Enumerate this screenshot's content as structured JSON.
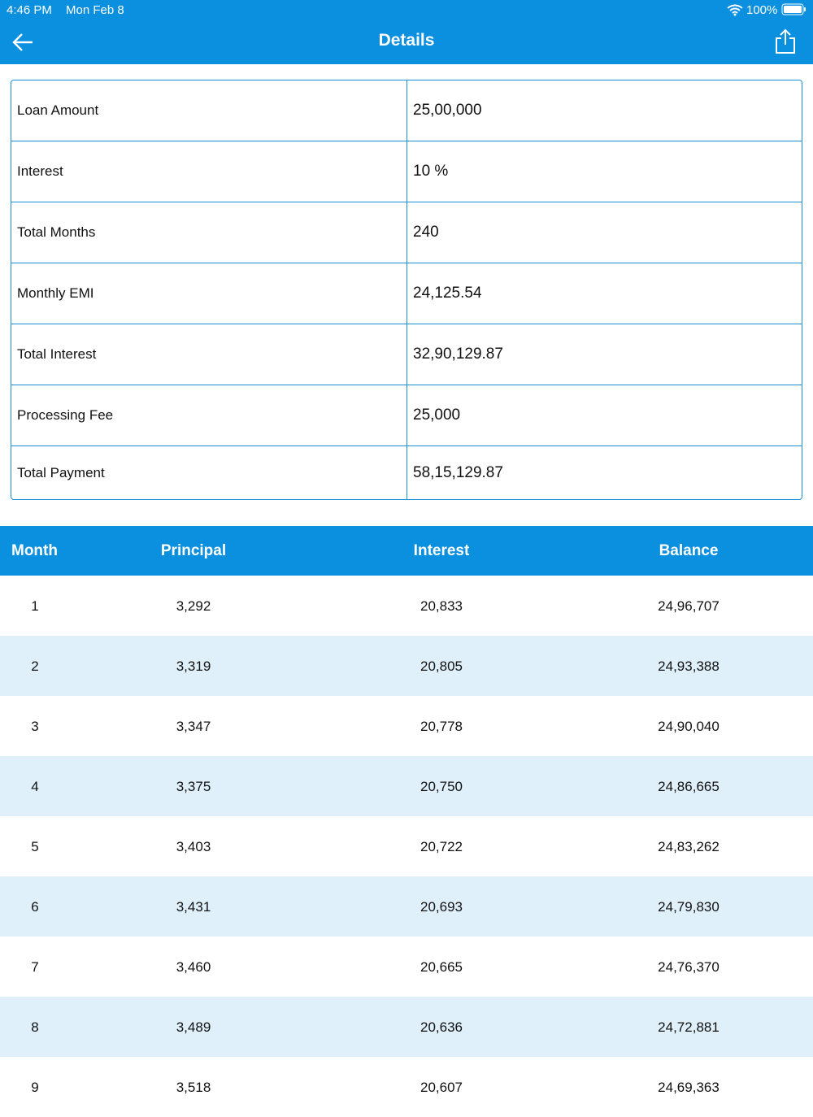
{
  "status_bar": {
    "time": "4:46 PM",
    "date": "Mon Feb 8",
    "battery": "100%"
  },
  "header": {
    "title": "Details"
  },
  "summary": {
    "rows": [
      [
        "Loan Amount",
        "25,00,000"
      ],
      [
        "Interest",
        "10 %"
      ],
      [
        "Total Months",
        "240"
      ],
      [
        "Monthly EMI",
        "24,125.54"
      ],
      [
        "Total Interest",
        "32,90,129.87"
      ],
      [
        "Processing Fee",
        "25,000"
      ],
      [
        "Total Payment",
        "58,15,129.87"
      ]
    ]
  },
  "schedule": {
    "columns": [
      "Month",
      "Principal",
      "Interest",
      "Balance"
    ],
    "rows": [
      [
        "1",
        "3,292",
        "20,833",
        "24,96,707"
      ],
      [
        "2",
        "3,319",
        "20,805",
        "24,93,388"
      ],
      [
        "3",
        "3,347",
        "20,778",
        "24,90,040"
      ],
      [
        "4",
        "3,375",
        "20,750",
        "24,86,665"
      ],
      [
        "5",
        "3,403",
        "20,722",
        "24,83,262"
      ],
      [
        "6",
        "3,431",
        "20,693",
        "24,79,830"
      ],
      [
        "7",
        "3,460",
        "20,665",
        "24,76,370"
      ],
      [
        "8",
        "3,489",
        "20,636",
        "24,72,881"
      ],
      [
        "9",
        "3,518",
        "20,607",
        "24,69,363"
      ]
    ]
  }
}
